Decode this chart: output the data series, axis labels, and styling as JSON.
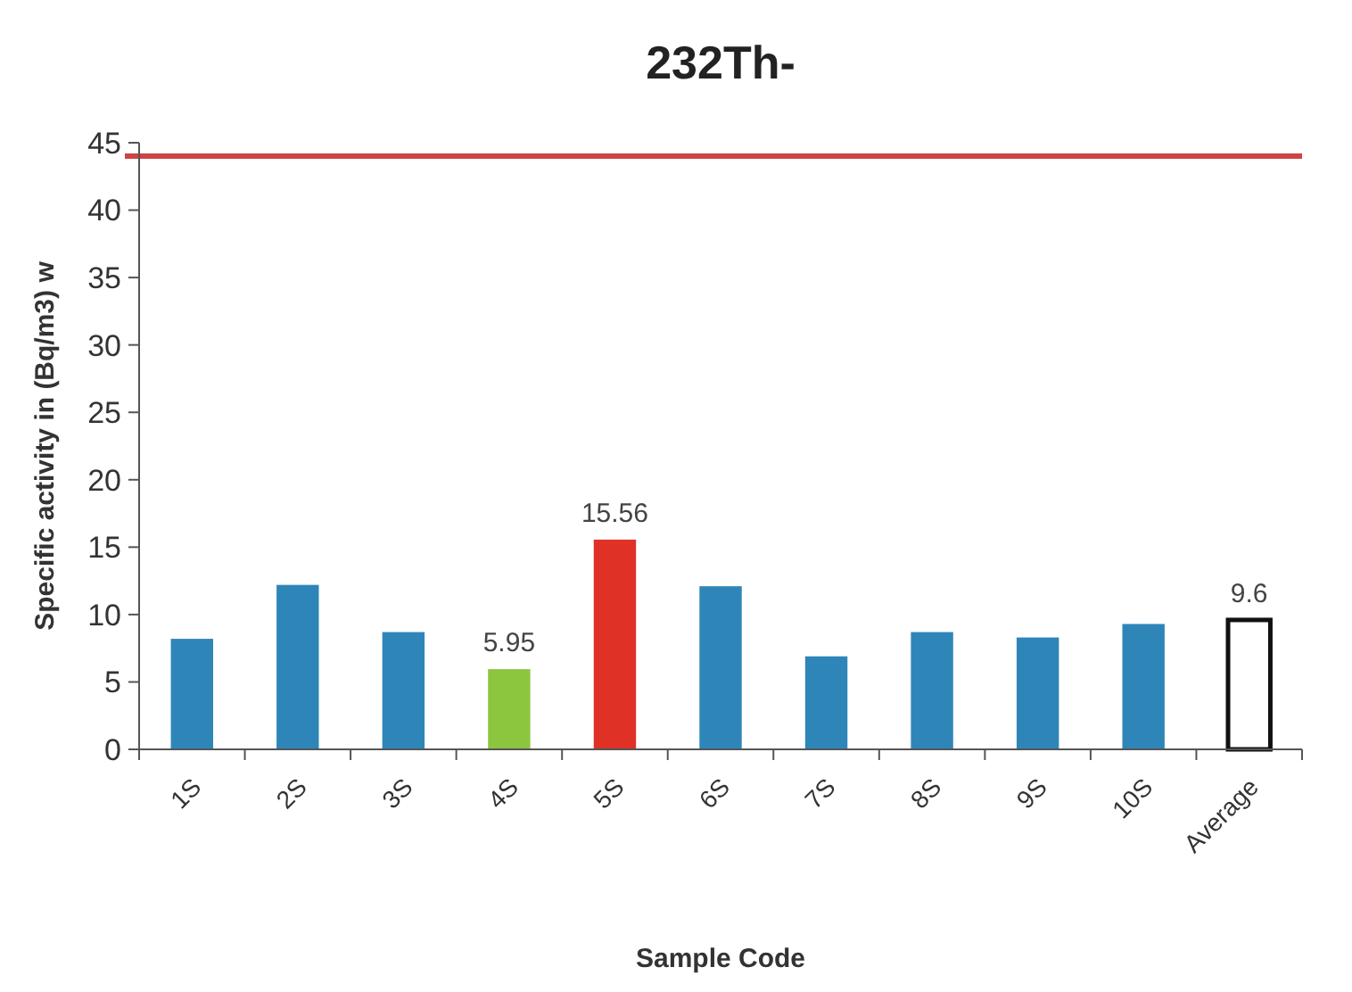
{
  "chart_data": {
    "type": "bar",
    "title": "232Th-",
    "xlabel": "Sample Code",
    "ylabel": "Specific activity in (Bq/m3) w",
    "categories": [
      "1S",
      "2S",
      "3S",
      "4S",
      "5S",
      "6S",
      "7S",
      "8S",
      "9S",
      "10S",
      "Average"
    ],
    "values": [
      8.2,
      12.2,
      8.7,
      5.95,
      15.56,
      12.1,
      6.9,
      8.7,
      8.3,
      9.3,
      9.6
    ],
    "colors": [
      "#2e86b8",
      "#2e86b8",
      "#2e86b8",
      "#8cc63f",
      "#e03127",
      "#2e86b8",
      "#2e86b8",
      "#2e86b8",
      "#2e86b8",
      "#2e86b8",
      "#ffffff"
    ],
    "value_labels": [
      null,
      null,
      null,
      "5.95",
      "15.56",
      null,
      null,
      null,
      null,
      null,
      "9.6"
    ],
    "ylim": [
      0,
      45
    ],
    "yticks": [
      0,
      5,
      10,
      15,
      20,
      25,
      30,
      35,
      40,
      45
    ],
    "ref_lines": [
      {
        "axis": "y",
        "value": 44,
        "color": "#cc4444"
      }
    ],
    "grid": false
  }
}
